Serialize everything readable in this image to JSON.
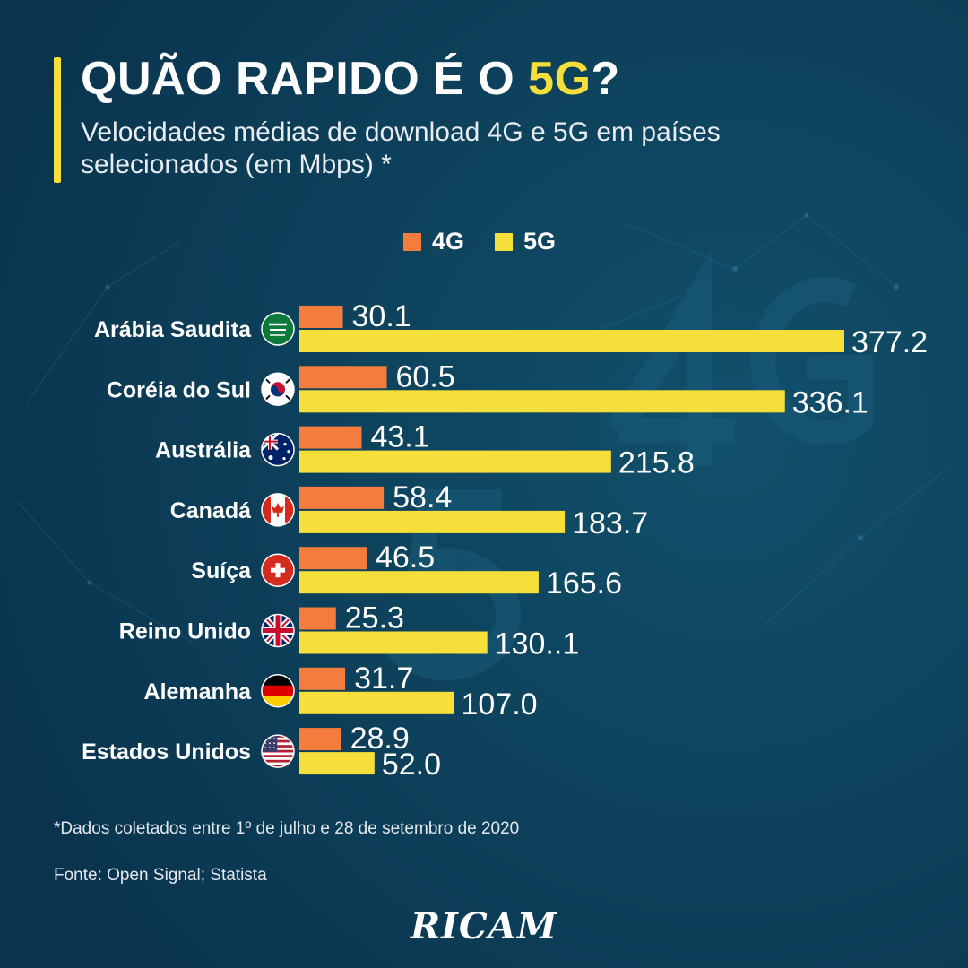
{
  "header": {
    "title_prefix": "QUÃO RAPIDO É O ",
    "title_highlight": "5G",
    "title_suffix": "?",
    "subtitle": "Velocidades médias de download 4G e 5G em países selecionados (em Mbps) *"
  },
  "legend": [
    {
      "label": "4G",
      "color": "#f47c3c"
    },
    {
      "label": "5G",
      "color": "#f6df3a"
    }
  ],
  "chart_data": {
    "type": "bar",
    "orientation": "horizontal",
    "categories": [
      "Arábia Saudita",
      "Coréia do Sul",
      "Austrália",
      "Canadá",
      "Suíça",
      "Reino Unido",
      "Alemanha",
      "Estados Unidos"
    ],
    "flags": [
      "saudi-arabia-flag-icon",
      "south-korea-flag-icon",
      "australia-flag-icon",
      "canada-flag-icon",
      "switzerland-flag-icon",
      "united-kingdom-flag-icon",
      "germany-flag-icon",
      "united-states-flag-icon"
    ],
    "series": [
      {
        "name": "4G",
        "color": "#f47c3c",
        "values": [
          30.1,
          60.5,
          43.1,
          58.4,
          46.5,
          25.3,
          31.7,
          28.9
        ],
        "labels": [
          "30.1",
          "60.5",
          "43.1",
          "58.4",
          "46.5",
          "25.3",
          "31.7",
          "28.9"
        ]
      },
      {
        "name": "5G",
        "color": "#f6df3a",
        "values": [
          377.2,
          336.1,
          215.8,
          183.7,
          165.6,
          130.1,
          107.0,
          52.0
        ],
        "labels": [
          "377.2",
          "336.1",
          "215.8",
          "183.7",
          "165.6",
          "130..1",
          "107.0",
          "52.0"
        ]
      }
    ],
    "xlim": [
      0,
      377.2
    ],
    "grid": false,
    "legend_position": "top"
  },
  "footer": {
    "footnote": "*Dados coletados entre 1º de julho e 28 de setembro de 2020",
    "source": "Fonte: Open Signal; Statista",
    "brand": "RICAM"
  },
  "colors": {
    "background": "#0b3a55",
    "accent": "#f6df3a",
    "bar_4g": "#f47c3c",
    "bar_5g": "#f6df3a"
  }
}
